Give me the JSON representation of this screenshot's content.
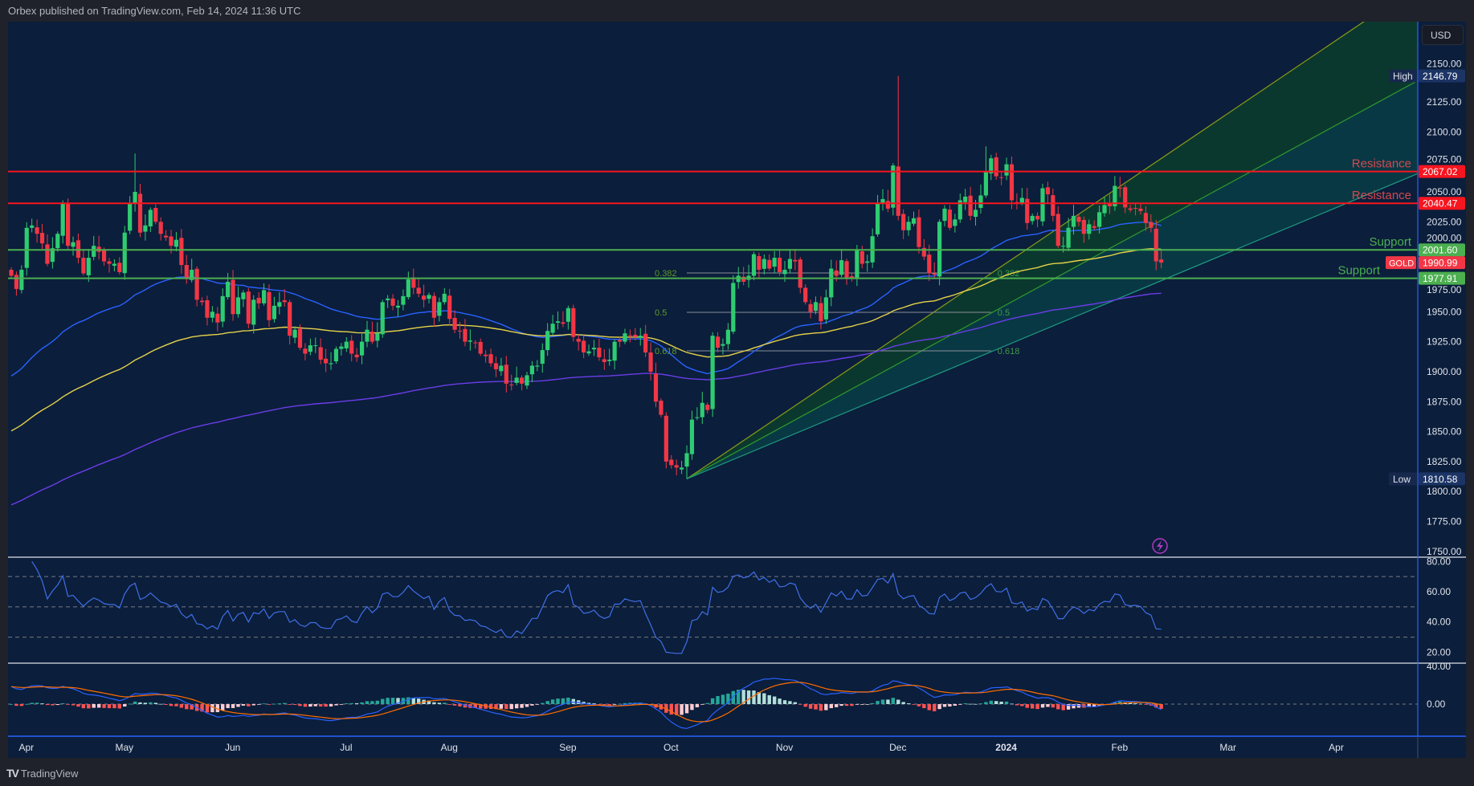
{
  "header": {
    "publisher_line": "Orbex published on TradingView.com, Feb 14, 2024 11:36 UTC"
  },
  "toolbar": {
    "currency": "USD"
  },
  "footer": {
    "brand": "TradingView",
    "logo": "TV"
  },
  "chart_data": {
    "type": "candlestick",
    "symbol": "GOLD",
    "currency": "USD",
    "start_date": "2023-03-30",
    "end_date": "2024-02-14",
    "closes": [
      1980,
      1969,
      1985,
      2020,
      2022,
      2015,
      2007,
      1990,
      2003,
      2015,
      2040,
      2005,
      2008,
      1995,
      1982,
      1995,
      2005,
      2000,
      1992,
      1990,
      1990,
      1983,
      2016,
      2040,
      2050,
      2016,
      2022,
      2035,
      2025,
      2015,
      2012,
      2005,
      2010,
      1989,
      1978,
      1985,
      1960,
      1958,
      1945,
      1950,
      1941,
      1963,
      1975,
      1948,
      1962,
      1966,
      1940,
      1960,
      1957,
      1968,
      1943,
      1955,
      1958,
      1958,
      1930,
      1935,
      1920,
      1915,
      1922,
      1922,
      1910,
      1907,
      1907,
      1919,
      1921,
      1925,
      1915,
      1912,
      1925,
      1935,
      1925,
      1932,
      1958,
      1961,
      1955,
      1955,
      1963,
      1977,
      1970,
      1965,
      1960,
      1964,
      1945,
      1958,
      1965,
      1944,
      1935,
      1934,
      1925,
      1926,
      1924,
      1915,
      1913,
      1907,
      1902,
      1905,
      1890,
      1889,
      1895,
      1890,
      1897,
      1905,
      1905,
      1918,
      1934,
      1940,
      1942,
      1940,
      1953,
      1929,
      1925,
      1916,
      1917,
      1920,
      1912,
      1908,
      1910,
      1925,
      1925,
      1932,
      1930,
      1929,
      1930,
      1916,
      1900,
      1875,
      1864,
      1825,
      1822,
      1820,
      1820,
      1832,
      1860,
      1862,
      1874,
      1868,
      1930,
      1920,
      1923,
      1935,
      1974,
      1980,
      1975,
      1980,
      1998,
      1985,
      1994,
      1986,
      1995,
      1983,
      1985,
      1994,
      1992,
      1970,
      1958,
      1950,
      1958,
      1942,
      1962,
      1986,
      1980,
      1993,
      1978,
      1978,
      2002,
      1990,
      1992,
      2013,
      2040,
      2044,
      2036,
      2072,
      2030,
      2018,
      2025,
      2028,
      2004,
      1996,
      1982,
      1981,
      2025,
      2036,
      2020,
      2027,
      2043,
      2046,
      2030,
      2035,
      2047,
      2067,
      2078,
      2063,
      2062,
      2073,
      2043,
      2040,
      2045,
      2024,
      2030,
      2027,
      2053,
      2048,
      2030,
      2005,
      2005,
      2020,
      2030,
      2025,
      2015,
      2023,
      2020,
      2033,
      2039,
      2038,
      2055,
      2053,
      2037,
      2035,
      2036,
      2034,
      2024,
      2020,
      1992,
      1991
    ],
    "extremes": [
      {
        "i": 24,
        "h": 2082
      },
      {
        "i": 131,
        "l": 1810.58
      },
      {
        "i": 172,
        "h": 2146.79
      },
      {
        "i": 189,
        "h": 2088
      }
    ],
    "last_price": "1990.99",
    "high": {
      "label": "High",
      "value": "2146.79"
    },
    "low": {
      "label": "Low",
      "value": "1810.58"
    },
    "price_ticks": [
      "2150.00",
      "2125.00",
      "2100.00",
      "2075.00",
      "2050.00",
      "2025.00",
      "2000.00",
      "1975.00",
      "1950.00",
      "1925.00",
      "1900.00",
      "1875.00",
      "1850.00",
      "1825.00",
      "1800.00",
      "1775.00",
      "1750.00"
    ],
    "time_ticks": [
      {
        "label": "Apr",
        "bar": 2
      },
      {
        "label": "May",
        "bar": 21
      },
      {
        "label": "Jun",
        "bar": 42
      },
      {
        "label": "Jul",
        "bar": 64
      },
      {
        "label": "Aug",
        "bar": 84
      },
      {
        "label": "Sep",
        "bar": 107
      },
      {
        "label": "Oct",
        "bar": 127
      },
      {
        "label": "Nov",
        "bar": 149
      },
      {
        "label": "Dec",
        "bar": 171
      },
      {
        "label": "2024",
        "bar": 192
      },
      {
        "label": "Feb",
        "bar": 214
      },
      {
        "label": "Mar",
        "bar": 235
      },
      {
        "label": "Apr",
        "bar": 256
      }
    ],
    "levels": [
      {
        "label": "Resistance",
        "price": 2067.02,
        "tag": "2067.02",
        "color": "#f7151f",
        "text_color": "#d24a4f"
      },
      {
        "label": "Resistance",
        "price": 2040.47,
        "tag": "2040.47",
        "color": "#f7151f",
        "text_color": "#d24a4f"
      },
      {
        "label": "Support",
        "price": 2001.6,
        "tag": "2001.60",
        "color": "#4caf50",
        "text_color": "#4caf50"
      },
      {
        "label": "Support",
        "price": 1977.91,
        "tag": "1977.91",
        "color": "#4caf50",
        "text_color": "#4caf50"
      }
    ],
    "moving_averages": [
      {
        "name": "MA 50",
        "period": 50,
        "seed": 1893,
        "color": "#2962ff"
      },
      {
        "name": "MA 100",
        "period": 100,
        "seed": 1848,
        "color": "#e6d24a"
      },
      {
        "name": "MA 200",
        "period": 200,
        "seed": 1787,
        "color": "#6a3de8"
      }
    ],
    "fib": {
      "from_bar": 131,
      "to_bar": 190,
      "levels": [
        {
          "label": "0.382",
          "price": 1982.3
        },
        {
          "label": "0.5",
          "price": 1949.5
        },
        {
          "label": "0.618",
          "price": 1917.4
        }
      ]
    },
    "fan": {
      "origin": {
        "bar": 131,
        "price": 1810.58
      },
      "lines": [
        {
          "bar": 227,
          "price": 2089.5,
          "color": "#8a9a16"
        },
        {
          "bar": 250,
          "price": 2089.5,
          "color": "#2f9a2b"
        },
        {
          "bar": 273.7,
          "price": 2067,
          "color": "#1f9a80"
        }
      ],
      "fills": [
        "#0c3a2d",
        "#0a3a46"
      ]
    },
    "rsi": {
      "period": 14,
      "levels": [
        70,
        50,
        30
      ],
      "ticks": [
        "80.00",
        "60.00",
        "40.00",
        "20.00"
      ],
      "color": "#3f6fe8"
    },
    "macd": {
      "fast": 12,
      "slow": 26,
      "signal": 9,
      "ticks": [
        "40.00",
        "0.00"
      ],
      "macd_color": "#2962ff",
      "signal_color": "#ff6d00",
      "hist_colors": [
        "#26a69a",
        "#b2dfdb",
        "#ff5252",
        "#ffcdd2"
      ]
    },
    "colors": {
      "up": "#2ecc71",
      "down": "#f23645"
    }
  }
}
